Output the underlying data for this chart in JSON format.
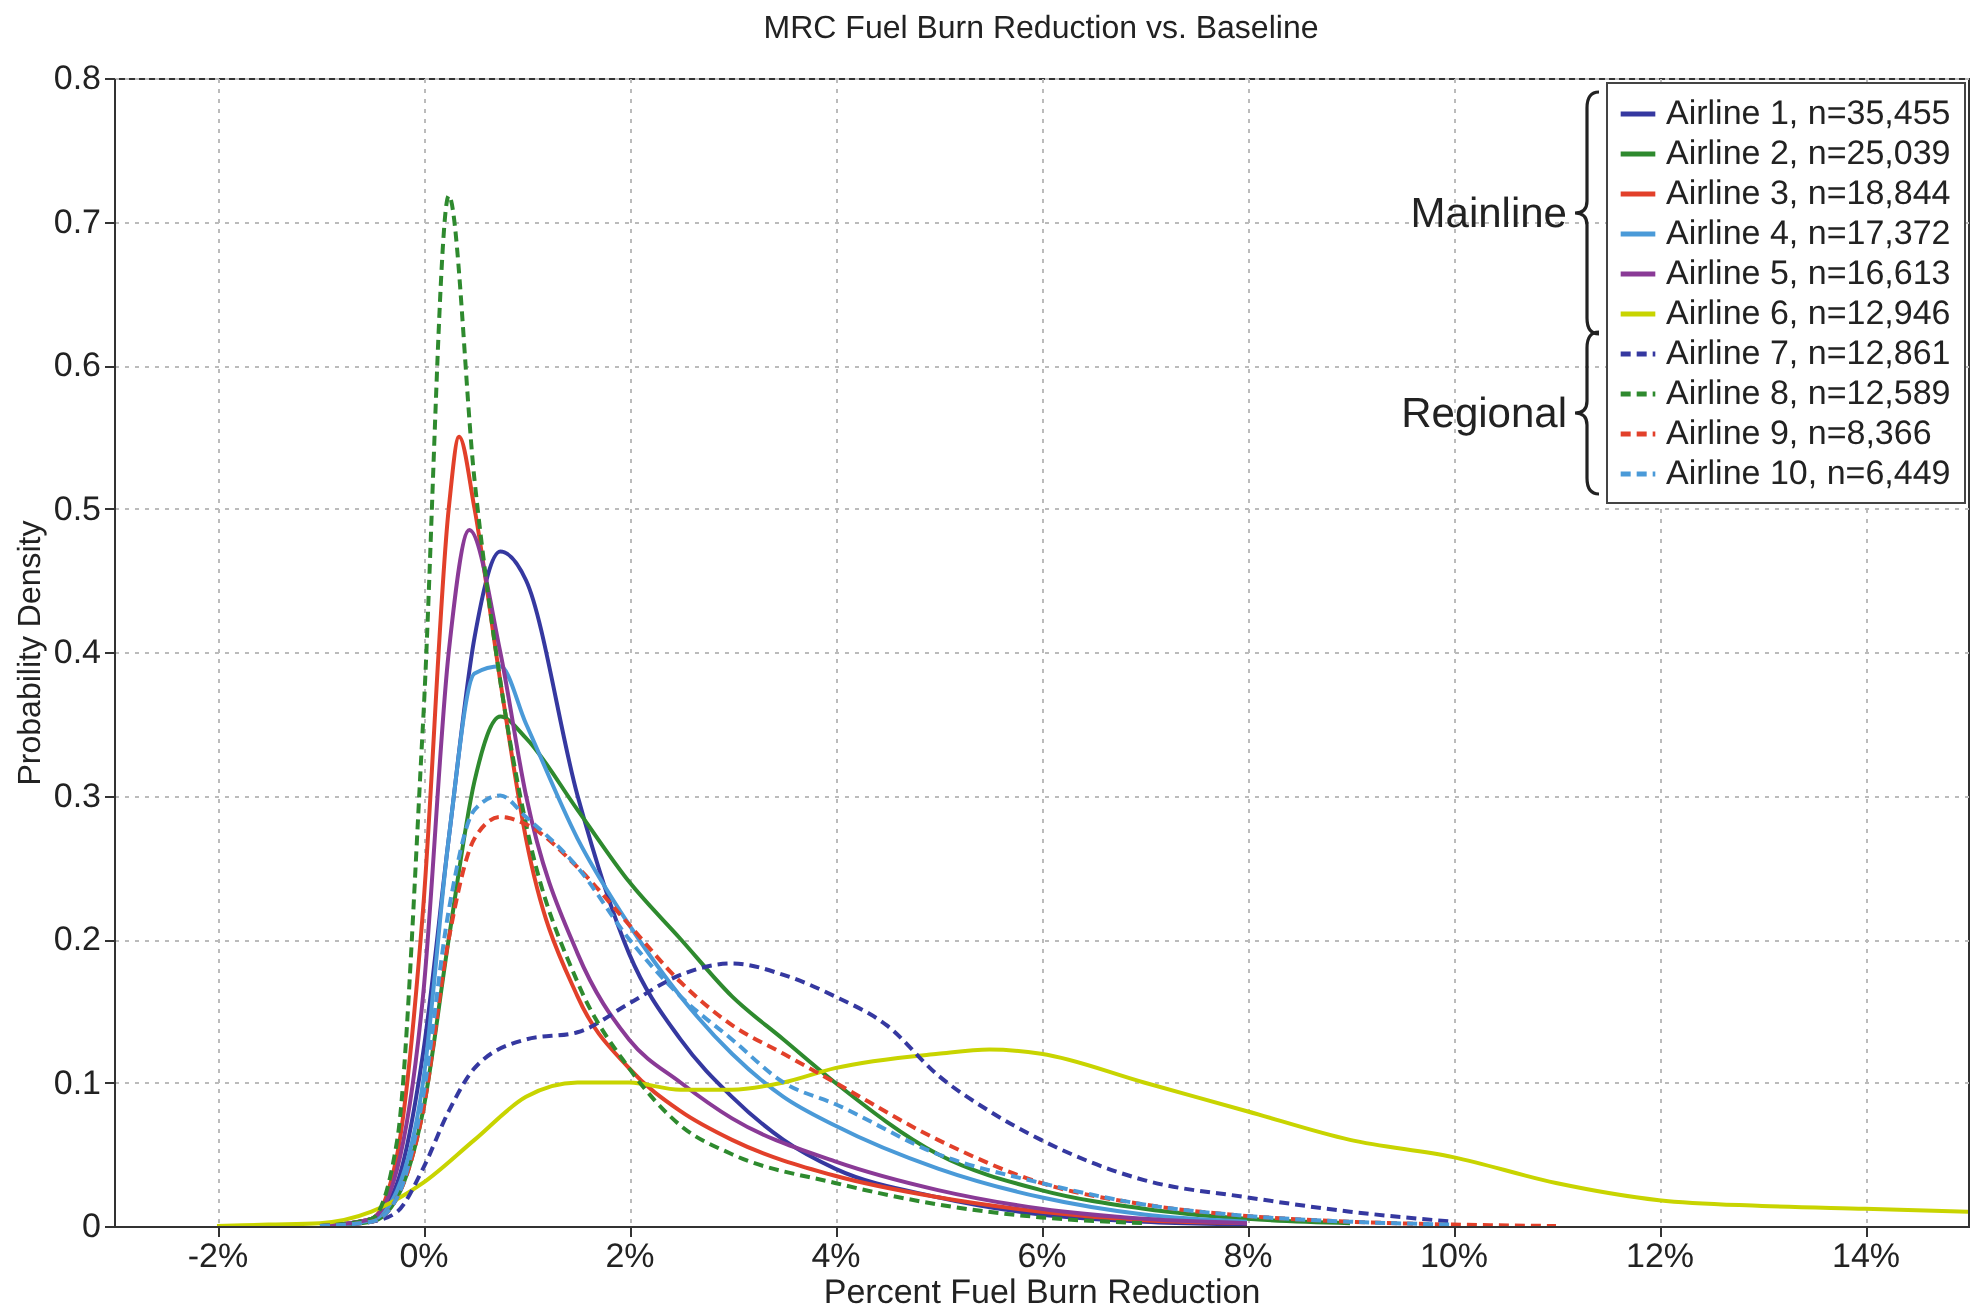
{
  "chart_data": {
    "type": "line",
    "title": "MRC Fuel Burn Reduction vs. Baseline",
    "xlabel": "Percent Fuel Burn Reduction",
    "ylabel": "Probability Density",
    "xlim": [
      -3,
      15
    ],
    "xticks": [
      {
        "value": -2,
        "label": "-2%"
      },
      {
        "value": 0,
        "label": "0%"
      },
      {
        "value": 2,
        "label": "2%"
      },
      {
        "value": 4,
        "label": "4%"
      },
      {
        "value": 6,
        "label": "6%"
      },
      {
        "value": 8,
        "label": "8%"
      },
      {
        "value": 10,
        "label": "10%"
      },
      {
        "value": 12,
        "label": "12%"
      },
      {
        "value": 14,
        "label": "14%"
      }
    ],
    "ylim": [
      0,
      0.8
    ],
    "yticks": [
      0,
      0.1,
      0.2,
      0.3,
      0.4,
      0.5,
      0.6,
      0.7,
      0.8
    ],
    "grid": true,
    "legend": "top right",
    "annotations": [
      "Mainline",
      "Regional"
    ],
    "series": [
      {
        "name": "Airline 1, n=35,455",
        "color": "#3538a0",
        "line_style": "solid",
        "x": [
          -1,
          -0.5,
          -0.25,
          0,
          0.25,
          0.5,
          0.75,
          1,
          1.5,
          2,
          2.5,
          3,
          3.5,
          4,
          5,
          6,
          7,
          8
        ],
        "values": [
          0,
          0.005,
          0.03,
          0.12,
          0.27,
          0.41,
          0.47,
          0.45,
          0.3,
          0.19,
          0.13,
          0.09,
          0.06,
          0.04,
          0.02,
          0.008,
          0.003,
          0.001
        ]
      },
      {
        "name": "Airline 2, n=25,039",
        "color": "#2e8a2e",
        "line_style": "solid",
        "x": [
          -1,
          -0.5,
          -0.25,
          0,
          0.25,
          0.5,
          0.75,
          1,
          1.5,
          2,
          2.5,
          3,
          3.5,
          4,
          5,
          6,
          7,
          8,
          9
        ],
        "values": [
          0,
          0.003,
          0.02,
          0.08,
          0.2,
          0.31,
          0.355,
          0.34,
          0.29,
          0.24,
          0.2,
          0.16,
          0.13,
          0.1,
          0.05,
          0.025,
          0.012,
          0.005,
          0.002
        ]
      },
      {
        "name": "Airline 3, n=18,844",
        "color": "#e2402a",
        "line_style": "solid",
        "x": [
          -1,
          -0.5,
          -0.25,
          0,
          0.25,
          0.35,
          0.5,
          0.75,
          1,
          1.5,
          2,
          2.5,
          3,
          4,
          5,
          6,
          7,
          8
        ],
        "values": [
          0,
          0.005,
          0.05,
          0.22,
          0.5,
          0.55,
          0.5,
          0.38,
          0.27,
          0.16,
          0.11,
          0.08,
          0.06,
          0.035,
          0.02,
          0.01,
          0.004,
          0.002
        ]
      },
      {
        "name": "Airline 4, n=17,372",
        "color": "#4a9ad8",
        "line_style": "solid",
        "x": [
          -1,
          -0.5,
          -0.25,
          0,
          0.25,
          0.5,
          0.75,
          1,
          1.5,
          2,
          2.5,
          3,
          3.5,
          4,
          5,
          6,
          7,
          8
        ],
        "values": [
          0,
          0.004,
          0.025,
          0.1,
          0.27,
          0.385,
          0.39,
          0.35,
          0.27,
          0.21,
          0.16,
          0.12,
          0.09,
          0.07,
          0.04,
          0.02,
          0.008,
          0.003
        ]
      },
      {
        "name": "Airline 5, n=16,613",
        "color": "#8a3a96",
        "line_style": "solid",
        "x": [
          -1,
          -0.5,
          -0.25,
          0,
          0.25,
          0.45,
          0.75,
          1,
          1.5,
          2,
          2.5,
          3,
          4,
          5,
          6,
          7,
          8
        ],
        "values": [
          0,
          0.005,
          0.04,
          0.16,
          0.4,
          0.485,
          0.4,
          0.3,
          0.19,
          0.13,
          0.1,
          0.075,
          0.045,
          0.025,
          0.012,
          0.005,
          0.002
        ]
      },
      {
        "name": "Airline 6, n=12,946",
        "color": "#c8d400",
        "line_style": "solid",
        "x": [
          -2,
          -1.5,
          -1,
          -0.5,
          0,
          0.5,
          1,
          1.5,
          2,
          2.5,
          3,
          3.5,
          4,
          5,
          5.5,
          6,
          7,
          8,
          9,
          10,
          11,
          12,
          13,
          14,
          15
        ],
        "values": [
          0,
          0.001,
          0.002,
          0.01,
          0.03,
          0.06,
          0.09,
          0.1,
          0.1,
          0.095,
          0.095,
          0.1,
          0.11,
          0.12,
          0.123,
          0.12,
          0.1,
          0.08,
          0.06,
          0.048,
          0.03,
          0.018,
          0.014,
          0.012,
          0.01
        ]
      },
      {
        "name": "Airline 7, n=12,861",
        "color": "#3538a0",
        "line_style": "dashed",
        "x": [
          -1,
          -0.5,
          -0.25,
          0,
          0.25,
          0.5,
          1,
          1.5,
          2,
          2.5,
          3,
          3.5,
          4,
          4.5,
          5,
          5.5,
          6,
          7,
          8,
          9,
          10
        ],
        "values": [
          0,
          0.003,
          0.01,
          0.04,
          0.08,
          0.11,
          0.13,
          0.135,
          0.155,
          0.175,
          0.183,
          0.175,
          0.16,
          0.14,
          0.105,
          0.08,
          0.06,
          0.032,
          0.02,
          0.01,
          0.003
        ]
      },
      {
        "name": "Airline 8, n=12,589",
        "color": "#2e8a2e",
        "line_style": "dashed",
        "x": [
          -1,
          -0.5,
          -0.25,
          0,
          0.25,
          0.5,
          0.75,
          1,
          1.5,
          2,
          2.5,
          3,
          4,
          5,
          6,
          7
        ],
        "values": [
          0,
          0.005,
          0.06,
          0.35,
          0.718,
          0.52,
          0.38,
          0.28,
          0.17,
          0.11,
          0.07,
          0.05,
          0.03,
          0.015,
          0.006,
          0.002
        ]
      },
      {
        "name": "Airline 9, n=8,366",
        "color": "#e2402a",
        "line_style": "dashed",
        "x": [
          -1,
          -0.5,
          -0.25,
          0,
          0.25,
          0.5,
          0.75,
          1,
          1.5,
          2,
          2.5,
          3,
          3.5,
          4,
          5,
          6,
          7,
          8,
          9,
          10,
          11
        ],
        "values": [
          0,
          0.003,
          0.02,
          0.08,
          0.2,
          0.27,
          0.285,
          0.28,
          0.25,
          0.21,
          0.17,
          0.14,
          0.12,
          0.1,
          0.06,
          0.03,
          0.015,
          0.007,
          0.003,
          0.001,
          0
        ]
      },
      {
        "name": "Airline 10, n=6,449",
        "color": "#4a9ad8",
        "line_style": "dashed",
        "x": [
          -1,
          -0.5,
          -0.25,
          0,
          0.25,
          0.5,
          0.75,
          1,
          1.5,
          2,
          2.5,
          3,
          3.5,
          4,
          5,
          6,
          7,
          8,
          9,
          10
        ],
        "values": [
          0,
          0.003,
          0.02,
          0.09,
          0.22,
          0.29,
          0.3,
          0.285,
          0.25,
          0.2,
          0.16,
          0.13,
          0.1,
          0.085,
          0.05,
          0.03,
          0.015,
          0.007,
          0.003,
          0.001
        ]
      }
    ]
  }
}
